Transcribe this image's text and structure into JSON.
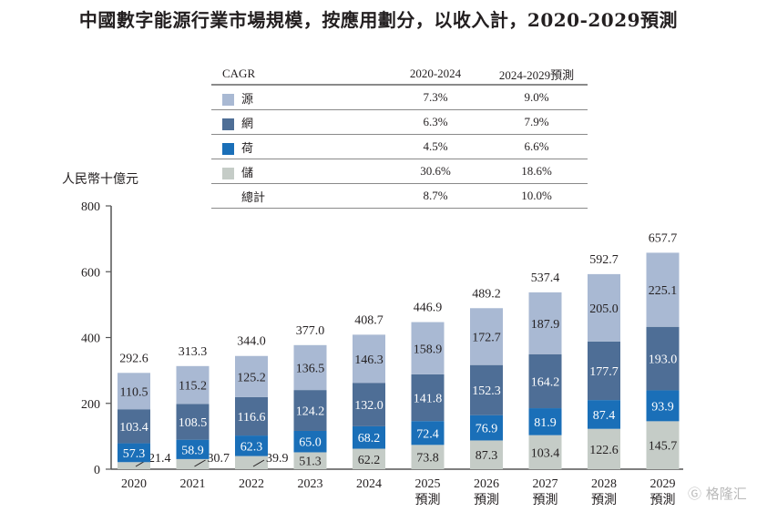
{
  "title": "中國數字能源行業市場規模，按應用劃分，以收入計，2020-2029預測",
  "unit_label": "人民幣十億元",
  "cagr_table": {
    "header": [
      "CAGR",
      "2020-2024",
      "2024-2029預測"
    ],
    "rows": [
      {
        "label": "源",
        "color": "#a9b9d3",
        "v1": "7.3%",
        "v2": "9.0%"
      },
      {
        "label": "網",
        "color": "#4e6e96",
        "v1": "6.3%",
        "v2": "7.9%"
      },
      {
        "label": "荷",
        "color": "#1a6fb8",
        "v1": "4.5%",
        "v2": "6.6%"
      },
      {
        "label": "儲",
        "color": "#c5ccc7",
        "v1": "30.6%",
        "v2": "18.6%"
      },
      {
        "label": "總計",
        "color": "",
        "v1": "8.7%",
        "v2": "10.0%"
      }
    ]
  },
  "watermark": "格隆汇",
  "chart_data": {
    "type": "bar",
    "stacked": true,
    "title": "中國數字能源行業市場規模，按應用劃分，以收入計，2020-2029預測",
    "ylabel": "人民幣十億元",
    "ylim": [
      0,
      800
    ],
    "yticks": [
      0,
      200,
      400,
      600,
      800
    ],
    "categories": [
      "2020",
      "2021",
      "2022",
      "2023",
      "2024",
      "2025",
      "2026",
      "2027",
      "2028",
      "2029"
    ],
    "category_sublabels": [
      "",
      "",
      "",
      "",
      "",
      "預測",
      "預測",
      "預測",
      "預測",
      "預測"
    ],
    "series": [
      {
        "name": "儲",
        "color": "#c5ccc7",
        "label_color": "#231f20",
        "values": [
          21.4,
          30.7,
          39.9,
          51.3,
          62.2,
          73.8,
          87.3,
          103.4,
          122.6,
          145.7
        ]
      },
      {
        "name": "荷",
        "color": "#1a6fb8",
        "label_color": "#ffffff",
        "values": [
          57.3,
          58.9,
          62.3,
          65.0,
          68.2,
          72.4,
          76.9,
          81.9,
          87.4,
          93.9
        ]
      },
      {
        "name": "網",
        "color": "#4e6e96",
        "label_color": "#ffffff",
        "values": [
          103.4,
          108.5,
          116.6,
          124.2,
          132.0,
          141.8,
          152.3,
          164.2,
          177.7,
          193.0
        ]
      },
      {
        "name": "源",
        "color": "#a9b9d3",
        "label_color": "#231f20",
        "values": [
          110.5,
          115.2,
          125.2,
          136.5,
          146.3,
          158.9,
          172.7,
          187.9,
          205.0,
          225.1
        ]
      }
    ],
    "totals": [
      292.6,
      313.3,
      344.0,
      377.0,
      408.7,
      446.9,
      489.2,
      537.4,
      592.7,
      657.7
    ],
    "grid": false,
    "legend": "top-center table"
  }
}
